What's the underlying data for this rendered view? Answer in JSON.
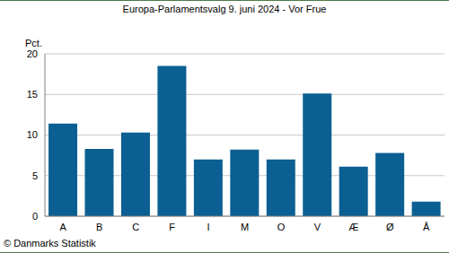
{
  "chart_data": {
    "type": "bar",
    "title": "Europa-Parlamentsvalg 9. juni 2024 - Vor Frue",
    "y_label": "Pct.",
    "source": "© Danmarks Statistik",
    "categories": [
      "A",
      "B",
      "C",
      "F",
      "I",
      "M",
      "O",
      "V",
      "Æ",
      "Ø",
      "Å"
    ],
    "values": [
      11.4,
      8.3,
      10.3,
      18.5,
      7.0,
      8.2,
      7.0,
      15.1,
      6.1,
      7.8,
      1.8
    ],
    "color": "#0b5f92",
    "ylim": [
      0,
      20
    ],
    "yticks": [
      0,
      5,
      10,
      15,
      20
    ],
    "grid": true
  }
}
